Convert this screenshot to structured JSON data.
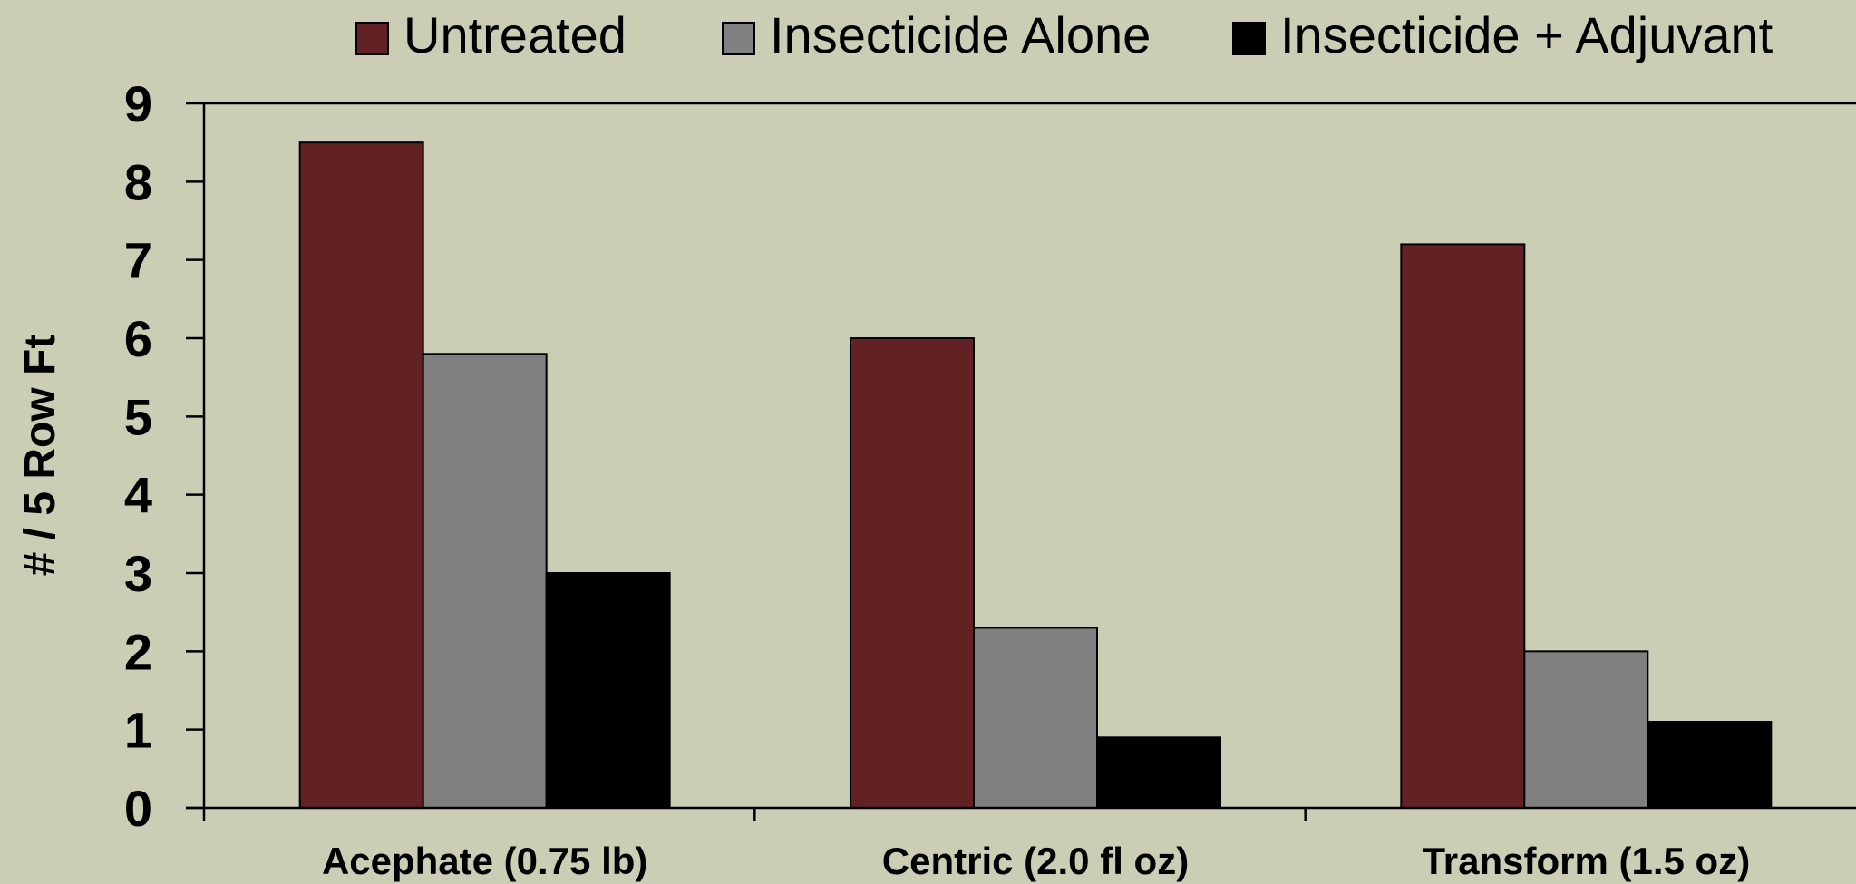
{
  "chart_data": {
    "type": "bar",
    "title": "",
    "xlabel": "",
    "ylabel": "# / 5 Row Ft",
    "ylim": [
      0,
      9
    ],
    "yticks": [
      "0",
      "1",
      "2",
      "3",
      "4",
      "5",
      "6",
      "7",
      "8",
      "9"
    ],
    "categories": [
      "Acephate (0.75 lb)",
      "Centric (2.0 fl oz)",
      "Transform (1.5 oz)"
    ],
    "series": [
      {
        "name": "Untreated",
        "color": "#622224",
        "values": [
          8.5,
          6.0,
          7.2
        ]
      },
      {
        "name": "Insecticide Alone",
        "color": "#808080",
        "values": [
          5.8,
          2.3,
          2.0
        ]
      },
      {
        "name": "Insecticide + Adjuvant",
        "color": "#000000",
        "values": [
          3.0,
          0.9,
          1.1
        ]
      }
    ],
    "legend_position": "top",
    "grid": false
  }
}
